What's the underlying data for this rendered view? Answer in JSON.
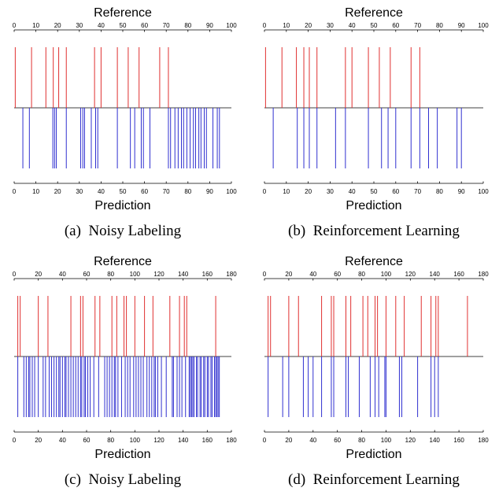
{
  "chart_data": [
    {
      "type": "event-raster",
      "caption": "(a)  Noisy Labeling",
      "top_axis_label": "Reference",
      "bottom_axis_label": "Prediction",
      "xlim": [
        0,
        100
      ],
      "ticks": [
        0,
        10,
        20,
        30,
        40,
        50,
        60,
        70,
        80,
        90,
        100
      ],
      "reference_color": "#e03030",
      "prediction_color": "#3030d0",
      "reference_events": [
        0.5,
        8,
        14.6,
        18,
        20.5,
        24,
        37,
        40,
        47.5,
        52.5,
        57.5,
        67,
        71
      ],
      "prediction_events": [
        4,
        7,
        17.8,
        18.6,
        19.4,
        24,
        30.6,
        31.6,
        32.4,
        35.5,
        37.5,
        38.5,
        47.5,
        53.5,
        55.5,
        58.5,
        59.5,
        62.5,
        71,
        72,
        74,
        75.5,
        77,
        78,
        79.5,
        81,
        82.5,
        83.5,
        85,
        86,
        87.5,
        88.5,
        91.5,
        93.5,
        94.5
      ]
    },
    {
      "type": "event-raster",
      "caption": "(b)  Reinforcement Learning",
      "top_axis_label": "Reference",
      "bottom_axis_label": "Prediction",
      "xlim": [
        0,
        100
      ],
      "ticks": [
        0,
        10,
        20,
        30,
        40,
        50,
        60,
        70,
        80,
        90,
        100
      ],
      "reference_color": "#e03030",
      "prediction_color": "#3030d0",
      "reference_events": [
        0.5,
        8,
        14.6,
        18,
        20.5,
        24,
        37,
        40,
        47.5,
        52.5,
        57.5,
        67,
        71
      ],
      "prediction_events": [
        4,
        15,
        18,
        20.5,
        24,
        32.5,
        37,
        47.5,
        53.5,
        56.5,
        60,
        67,
        71,
        75,
        79,
        88,
        90
      ]
    },
    {
      "type": "event-raster",
      "caption": "(c)  Noisy Labeling",
      "top_axis_label": "Reference",
      "bottom_axis_label": "Prediction",
      "xlim": [
        0,
        180
      ],
      "ticks": [
        0,
        20,
        40,
        60,
        80,
        100,
        120,
        140,
        160,
        180
      ],
      "reference_color": "#e03030",
      "prediction_color": "#3030d0",
      "reference_events": [
        3,
        5,
        20,
        28,
        47,
        55,
        57,
        67,
        71,
        81,
        85,
        91,
        93,
        100,
        108,
        115,
        129,
        137,
        141,
        143,
        167
      ],
      "prediction_events": [
        3,
        8,
        10,
        12,
        13,
        15,
        17,
        20,
        24,
        26,
        29,
        31,
        33,
        35,
        37,
        38,
        40,
        42,
        43,
        45,
        47,
        49,
        51,
        53,
        55,
        56,
        58,
        59,
        61,
        63,
        66,
        70,
        75,
        77,
        79,
        81,
        83,
        84,
        86,
        89,
        92,
        94,
        96,
        99,
        101,
        103,
        105,
        107,
        110,
        112,
        114,
        116,
        117,
        119,
        122,
        126,
        131,
        132,
        135,
        137,
        139,
        142,
        145,
        146,
        147,
        148,
        149,
        151,
        152,
        154,
        155,
        157,
        158,
        160,
        161,
        163,
        164,
        166,
        167,
        168,
        169,
        170
      ]
    },
    {
      "type": "event-raster",
      "caption": "(d)  Reinforcement Learning",
      "top_axis_label": "Reference",
      "bottom_axis_label": "Prediction",
      "xlim": [
        0,
        180
      ],
      "ticks": [
        0,
        20,
        40,
        60,
        80,
        100,
        120,
        140,
        160,
        180
      ],
      "reference_color": "#e03030",
      "prediction_color": "#3030d0",
      "reference_events": [
        3,
        5,
        20,
        28,
        47,
        55,
        57,
        67,
        71,
        81,
        85,
        91,
        93,
        100,
        108,
        115,
        129,
        137,
        141,
        143,
        167
      ],
      "prediction_events": [
        3,
        15,
        20,
        32,
        36,
        40,
        47,
        55,
        57,
        67,
        69,
        78,
        87,
        91,
        94,
        99,
        100,
        111,
        113,
        126,
        137,
        140,
        143
      ]
    }
  ]
}
